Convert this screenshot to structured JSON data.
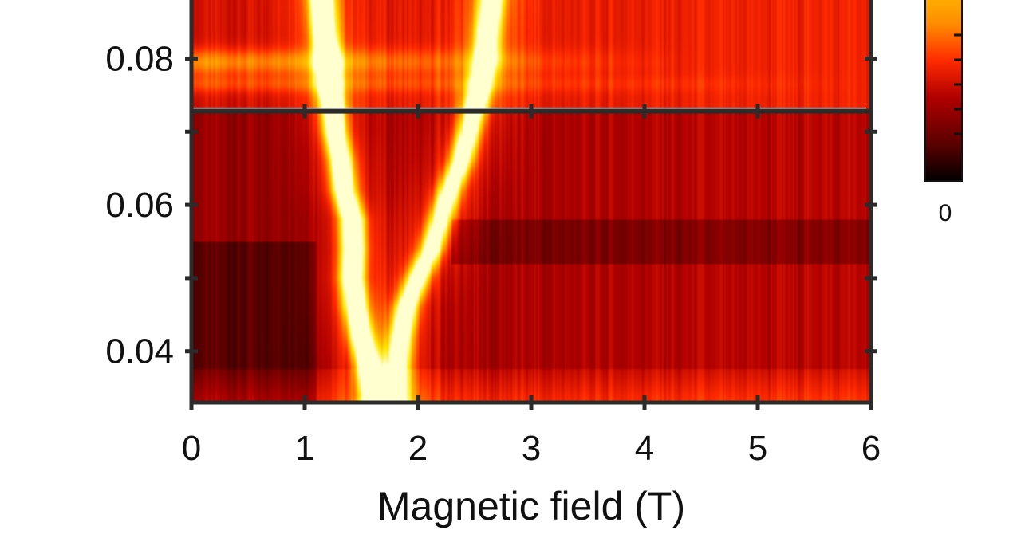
{
  "chart_data": {
    "type": "heatmap",
    "title": "",
    "xlabel": "Magnetic field (T)",
    "ylabel": "",
    "xlim": [
      0,
      6
    ],
    "ylim": [
      0.033,
      0.088
    ],
    "x_ticks": [
      0,
      1,
      2,
      3,
      4,
      5,
      6
    ],
    "x_tick_labels": [
      "0",
      "1",
      "2",
      "3",
      "4",
      "5",
      "6"
    ],
    "y_ticks": [
      0.04,
      0.05,
      0.06,
      0.07,
      0.08
    ],
    "y_tick_labels": [
      "0.04",
      "",
      "0.06",
      "",
      "0.08"
    ],
    "panel_break_y": 0.0728,
    "colormap": [
      "#000000",
      "#5a0000",
      "#b00000",
      "#ff2a00",
      "#ff8c00",
      "#ffe600",
      "#ffffd0"
    ],
    "colorbar": {
      "labels": [
        {
          "value": 0,
          "text": "0"
        }
      ],
      "ticks": 5
    },
    "series": [
      {
        "kind": "ridge",
        "intensity": 1.0,
        "points": [
          [
            0.034,
            1.62
          ],
          [
            0.038,
            1.56
          ],
          [
            0.042,
            1.5
          ],
          [
            0.046,
            1.45
          ],
          [
            0.05,
            1.42
          ],
          [
            0.054,
            1.43
          ],
          [
            0.058,
            1.42
          ],
          [
            0.062,
            1.35
          ],
          [
            0.066,
            1.32
          ],
          [
            0.07,
            1.27
          ],
          [
            0.073,
            1.25
          ],
          [
            0.076,
            1.22
          ],
          [
            0.08,
            1.2
          ],
          [
            0.084,
            1.17
          ],
          [
            0.088,
            1.15
          ]
        ]
      },
      {
        "kind": "ridge",
        "intensity": 0.85,
        "points": [
          [
            0.034,
            1.8
          ],
          [
            0.038,
            1.82
          ],
          [
            0.042,
            1.85
          ],
          [
            0.046,
            1.9
          ],
          [
            0.05,
            2.0
          ],
          [
            0.054,
            2.12
          ],
          [
            0.058,
            2.2
          ],
          [
            0.062,
            2.28
          ],
          [
            0.066,
            2.38
          ],
          [
            0.07,
            2.45
          ],
          [
            0.073,
            2.5
          ],
          [
            0.076,
            2.55
          ],
          [
            0.08,
            2.6
          ],
          [
            0.084,
            2.62
          ],
          [
            0.088,
            2.65
          ]
        ]
      }
    ]
  }
}
